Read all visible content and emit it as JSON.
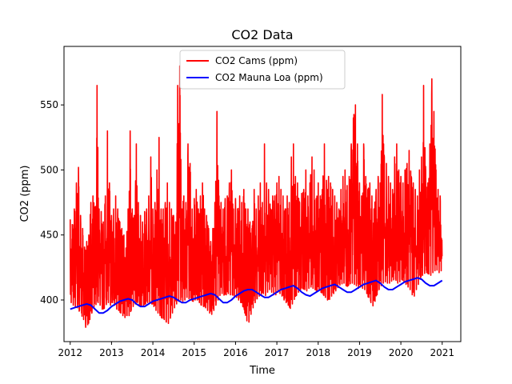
{
  "chart_data": {
    "type": "line",
    "title": "CO2 Data",
    "xlabel": "Time",
    "ylabel": "CO2 (ppm)",
    "xlim": [
      2011.85,
      2021.45
    ],
    "ylim": [
      368,
      595
    ],
    "x_ticks": [
      2012,
      2013,
      2014,
      2015,
      2016,
      2017,
      2018,
      2019,
      2020,
      2021
    ],
    "y_ticks": [
      400,
      450,
      500,
      550
    ],
    "legend_position": "top-center",
    "grid": false,
    "series": [
      {
        "name": "CO2 Cams (ppm)",
        "color": "#ff0000",
        "style": "dense noisy line",
        "x": [
          2012.0,
          2012.05,
          2012.1,
          2012.15,
          2012.2,
          2012.25,
          2012.3,
          2012.35,
          2012.4,
          2012.45,
          2012.5,
          2012.55,
          2012.6,
          2012.65,
          2012.7,
          2012.75,
          2012.8,
          2012.85,
          2012.9,
          2012.95,
          2013.0,
          2013.05,
          2013.1,
          2013.15,
          2013.2,
          2013.25,
          2013.3,
          2013.35,
          2013.4,
          2013.45,
          2013.5,
          2013.55,
          2013.6,
          2013.65,
          2013.7,
          2013.75,
          2013.8,
          2013.85,
          2013.9,
          2013.95,
          2014.0,
          2014.05,
          2014.1,
          2014.15,
          2014.2,
          2014.25,
          2014.3,
          2014.35,
          2014.4,
          2014.45,
          2014.5,
          2014.55,
          2014.6,
          2014.65,
          2014.7,
          2014.75,
          2014.8,
          2014.85,
          2014.9,
          2014.95,
          2015.0,
          2015.05,
          2015.1,
          2015.15,
          2015.2,
          2015.25,
          2015.3,
          2015.35,
          2015.4,
          2015.45,
          2015.5,
          2015.55,
          2015.6,
          2015.65,
          2015.7,
          2015.75,
          2015.8,
          2015.85,
          2015.9,
          2015.95,
          2016.0,
          2016.05,
          2016.1,
          2016.15,
          2016.2,
          2016.25,
          2016.3,
          2016.35,
          2016.4,
          2016.45,
          2016.5,
          2016.55,
          2016.6,
          2016.65,
          2016.7,
          2016.75,
          2016.8,
          2016.85,
          2016.9,
          2016.95,
          2017.0,
          2017.05,
          2017.1,
          2017.15,
          2017.2,
          2017.25,
          2017.3,
          2017.35,
          2017.4,
          2017.45,
          2017.5,
          2017.55,
          2017.6,
          2017.65,
          2017.7,
          2017.75,
          2017.8,
          2017.85,
          2017.9,
          2017.95,
          2018.0,
          2018.05,
          2018.1,
          2018.15,
          2018.2,
          2018.25,
          2018.3,
          2018.35,
          2018.4,
          2018.45,
          2018.5,
          2018.55,
          2018.6,
          2018.65,
          2018.7,
          2018.75,
          2018.8,
          2018.85,
          2018.9,
          2018.95,
          2019.0,
          2019.05,
          2019.1,
          2019.15,
          2019.2,
          2019.25,
          2019.3,
          2019.35,
          2019.4,
          2019.45,
          2019.5,
          2019.55,
          2019.6,
          2019.65,
          2019.7,
          2019.75,
          2019.8,
          2019.85,
          2019.9,
          2019.95,
          2020.0,
          2020.05,
          2020.1,
          2020.15,
          2020.2,
          2020.25,
          2020.3,
          2020.35,
          2020.4,
          2020.45,
          2020.5,
          2020.55,
          2020.6,
          2020.65,
          2020.7,
          2020.75,
          2020.8,
          2020.85,
          2020.9,
          2020.95,
          2021.0
        ],
        "y_high": [
          462,
          458,
          470,
          490,
          502,
          465,
          455,
          440,
          445,
          450,
          475,
          480,
          470,
          565,
          470,
          468,
          460,
          480,
          530,
          490,
          465,
          470,
          480,
          470,
          460,
          455,
          450,
          440,
          470,
          530,
          470,
          465,
          520,
          475,
          465,
          460,
          468,
          470,
          480,
          510,
          470,
          475,
          500,
          525,
          470,
          470,
          475,
          490,
          475,
          470,
          465,
          460,
          565,
          580,
          470,
          480,
          475,
          520,
          505,
          470,
          478,
          485,
          470,
          480,
          490,
          470,
          465,
          455,
          445,
          455,
          475,
          545,
          480,
          475,
          470,
          478,
          480,
          490,
          500,
          470,
          478,
          470,
          480,
          475,
          485,
          470,
          470,
          460,
          455,
          485,
          470,
          480,
          490,
          475,
          520,
          490,
          485,
          470,
          480,
          480,
          490,
          495,
          485,
          480,
          470,
          480,
          475,
          510,
          520,
          495,
          490,
          475,
          482,
          485,
          500,
          480,
          490,
          510,
          500,
          478,
          490,
          480,
          485,
          520,
          492,
          495,
          490,
          485,
          480,
          475,
          470,
          485,
          495,
          500,
          488,
          495,
          520,
          540,
          550,
          520,
          490,
          480,
          520,
          495,
          485,
          490,
          480,
          470,
          485,
          495,
          490,
          558,
          510,
          505,
          495,
          490,
          485,
          510,
          520,
          500,
          495,
          490,
          500,
          505,
          515,
          495,
          490,
          485,
          480,
          500,
          510,
          565,
          500,
          490,
          520,
          570,
          545,
          500,
          485,
          480,
          462
        ],
        "y_low": [
          398,
          396,
          395,
          394,
          392,
          390,
          385,
          378,
          380,
          382,
          388,
          392,
          395,
          398,
          396,
          393,
          392,
          395,
          398,
          394,
          398,
          396,
          393,
          392,
          390,
          388,
          385,
          388,
          386,
          390,
          394,
          396,
          398,
          396,
          395,
          394,
          396,
          398,
          398,
          397,
          395,
          392,
          390,
          388,
          386,
          385,
          383,
          380,
          384,
          388,
          392,
          396,
          398,
          400,
          399,
          398,
          402,
          400,
          402,
          398,
          400,
          400,
          398,
          396,
          395,
          394,
          392,
          390,
          388,
          390,
          394,
          398,
          402,
          405,
          404,
          403,
          405,
          404,
          404,
          402,
          402,
          400,
          398,
          395,
          390,
          384,
          380,
          386,
          392,
          396,
          400,
          402,
          404,
          405,
          403,
          404,
          408,
          406,
          404,
          402,
          406,
          405,
          403,
          400,
          398,
          396,
          392,
          395,
          399,
          402,
          405,
          407,
          409,
          408,
          406,
          408,
          410,
          409,
          408,
          406,
          408,
          406,
          404,
          402,
          400,
          399,
          402,
          404,
          406,
          408,
          411,
          412,
          413,
          411,
          410,
          412,
          413,
          412,
          411,
          408,
          410,
          409,
          408,
          405,
          402,
          398,
          395,
          396,
          402,
          406,
          410,
          412,
          414,
          413,
          412,
          414,
          415,
          416,
          413,
          412,
          416,
          414,
          412,
          410,
          408,
          404,
          400,
          406,
          410,
          414,
          418,
          420,
          421,
          420,
          418,
          420,
          422,
          423,
          421,
          420,
          425
        ]
      },
      {
        "name": "CO2 Mauna Loa (ppm)",
        "color": "#0000ff",
        "style": "solid line",
        "x": [
          2012.0,
          2012.1,
          2012.2,
          2012.3,
          2012.4,
          2012.5,
          2012.6,
          2012.7,
          2012.8,
          2012.9,
          2013.0,
          2013.1,
          2013.2,
          2013.3,
          2013.4,
          2013.5,
          2013.6,
          2013.7,
          2013.8,
          2013.9,
          2014.0,
          2014.1,
          2014.2,
          2014.3,
          2014.4,
          2014.5,
          2014.6,
          2014.7,
          2014.8,
          2014.9,
          2015.0,
          2015.1,
          2015.2,
          2015.3,
          2015.4,
          2015.5,
          2015.6,
          2015.7,
          2015.8,
          2015.9,
          2016.0,
          2016.1,
          2016.2,
          2016.3,
          2016.4,
          2016.5,
          2016.6,
          2016.7,
          2016.8,
          2016.9,
          2017.0,
          2017.1,
          2017.2,
          2017.3,
          2017.4,
          2017.5,
          2017.6,
          2017.7,
          2017.8,
          2017.9,
          2018.0,
          2018.1,
          2018.2,
          2018.3,
          2018.4,
          2018.5,
          2018.6,
          2018.7,
          2018.8,
          2018.9,
          2019.0,
          2019.1,
          2019.2,
          2019.3,
          2019.4,
          2019.5,
          2019.6,
          2019.7,
          2019.8,
          2019.9,
          2020.0,
          2020.1,
          2020.2,
          2020.3,
          2020.4,
          2020.5,
          2020.6,
          2020.7,
          2020.8,
          2020.9,
          2021.0
        ],
        "values": [
          393,
          394,
          395,
          396,
          397,
          396,
          393,
          390,
          390,
          392,
          395,
          397,
          399,
          400,
          401,
          400,
          397,
          395,
          395,
          397,
          399,
          400,
          401,
          402,
          403,
          402,
          400,
          398,
          398,
          400,
          401,
          402,
          403,
          404,
          405,
          404,
          401,
          398,
          398,
          400,
          403,
          405,
          407,
          408,
          408,
          406,
          404,
          402,
          402,
          404,
          406,
          408,
          409,
          410,
          411,
          409,
          406,
          404,
          403,
          405,
          407,
          409,
          410,
          411,
          412,
          410,
          408,
          406,
          406,
          408,
          410,
          412,
          413,
          414,
          415,
          413,
          410,
          408,
          408,
          410,
          412,
          414,
          415,
          416,
          417,
          416,
          413,
          411,
          411,
          413,
          415
        ]
      }
    ]
  }
}
